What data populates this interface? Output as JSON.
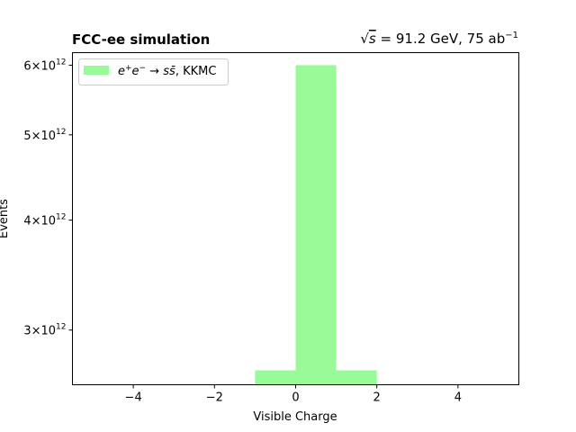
{
  "chart_data": {
    "type": "bar",
    "title_left": "FCC-ee simulation",
    "title_right": {
      "sqrt_symbol": "√",
      "sqrt_arg": "s",
      "text": " = 91.2 GeV, 75 ab",
      "exponent": "−1"
    },
    "xlabel": "Visible Charge",
    "ylabel": "Events",
    "yscale": "log",
    "xlim": [
      -5.5,
      5.5
    ],
    "ylim": [
      2600000000000.0,
      6200000000000.0
    ],
    "xticks": [
      {
        "value": -4,
        "label": "−4"
      },
      {
        "value": -2,
        "label": "−2"
      },
      {
        "value": 0,
        "label": "0"
      },
      {
        "value": 2,
        "label": "2"
      },
      {
        "value": 4,
        "label": "4"
      }
    ],
    "yticks": [
      {
        "value": 3000000000000.0,
        "mantissa": "3×10",
        "exp": "12"
      },
      {
        "value": 4000000000000.0,
        "mantissa": "4×10",
        "exp": "12"
      },
      {
        "value": 5000000000000.0,
        "mantissa": "5×10",
        "exp": "12"
      },
      {
        "value": 6000000000000.0,
        "mantissa": "6×10",
        "exp": "12"
      }
    ],
    "series": [
      {
        "name": "e⁺e⁻ → ss̄, KKMC",
        "color": "#98fb98",
        "bins": [
          {
            "x0": -1,
            "x1": 0,
            "value": 2700000000000.0
          },
          {
            "x0": 0,
            "x1": 1,
            "value": 6000000000000.0
          },
          {
            "x0": 1,
            "x1": 2,
            "value": 2700000000000.0
          }
        ]
      }
    ],
    "legend": {
      "placement": "top-left",
      "label_main": "e",
      "label_sup1": "+",
      "label_mid": "e",
      "label_sup2": "−",
      "label_arrow": " → ",
      "label_s": "ss̄",
      "label_tail": ", KKMC"
    }
  }
}
